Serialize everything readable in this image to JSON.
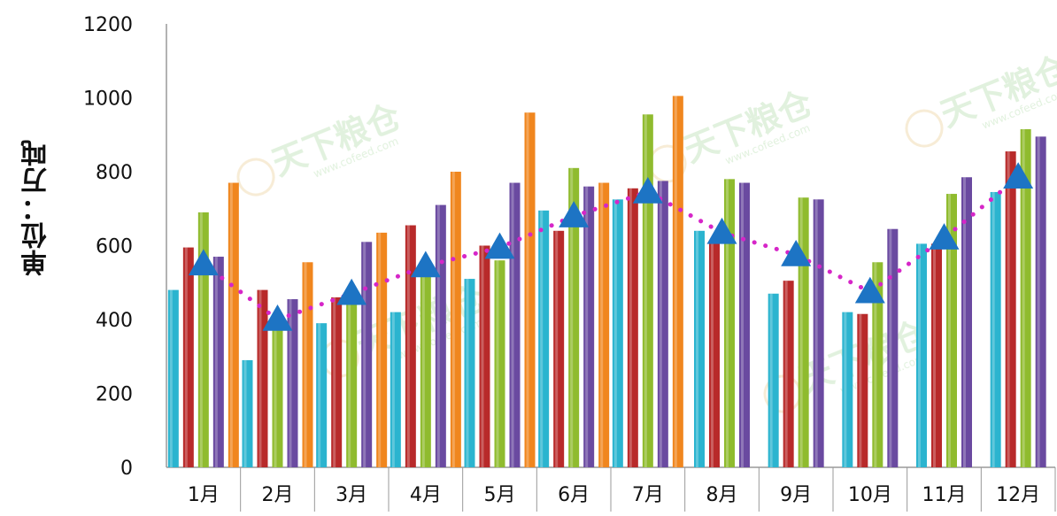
{
  "chart_data": {
    "type": "bar",
    "ylabel": "单位：万吨",
    "xlabel": "",
    "title": "",
    "ylim": [
      0,
      1200
    ],
    "yticks": [
      "0",
      "200",
      "400",
      "600",
      "800",
      "1000",
      "1200"
    ],
    "categories": [
      "1月",
      "2月",
      "3月",
      "4月",
      "5月",
      "6月",
      "7月",
      "8月",
      "9月",
      "10月",
      "11月",
      "12月"
    ],
    "series": [
      {
        "color": "#2bb4cf",
        "values": [
          480,
          290,
          390,
          420,
          510,
          695,
          725,
          640,
          470,
          420,
          605,
          745
        ]
      },
      {
        "color": "#b82a2a",
        "values": [
          595,
          480,
          460,
          655,
          600,
          640,
          755,
          605,
          505,
          415,
          605,
          855
        ]
      },
      {
        "color": "#8fbb2e",
        "values": [
          690,
          370,
          440,
          520,
          560,
          810,
          955,
          780,
          730,
          555,
          740,
          915
        ]
      },
      {
        "color": "#6a4aa0",
        "values": [
          570,
          455,
          610,
          710,
          770,
          760,
          775,
          770,
          725,
          645,
          785,
          895
        ]
      },
      {
        "color": "#f0861e",
        "values": [
          770,
          555,
          635,
          800,
          960,
          770,
          1005,
          null,
          null,
          null,
          null,
          null
        ]
      }
    ],
    "line": {
      "color": "#d626c8",
      "marker_color": "#1d74c4",
      "values": [
        550,
        400,
        470,
        545,
        595,
        680,
        745,
        635,
        575,
        475,
        620,
        785
      ]
    },
    "grid": false,
    "legend": "none"
  },
  "watermark": {
    "text": "天下粮仓",
    "url": "www.cofeed.com"
  }
}
